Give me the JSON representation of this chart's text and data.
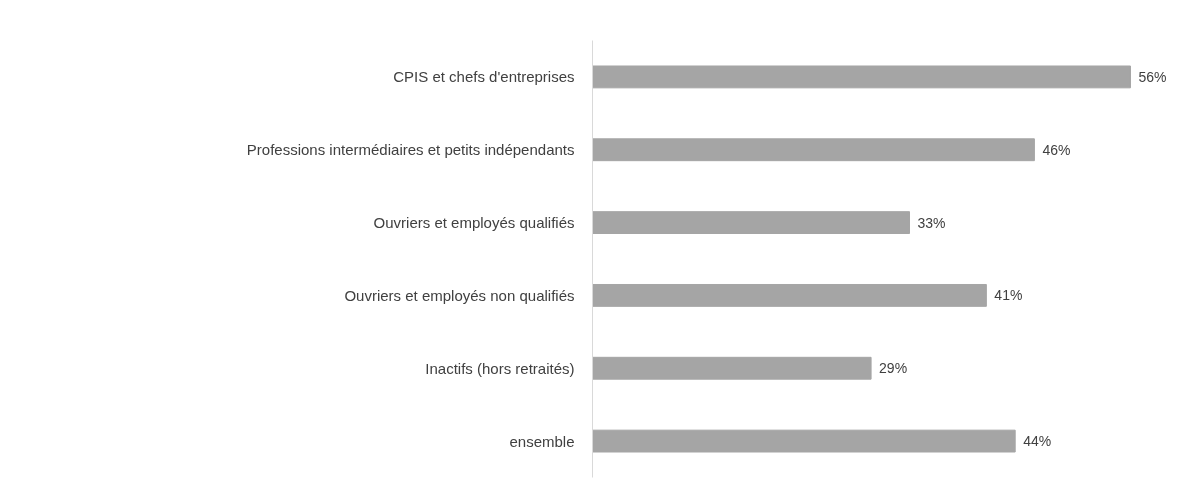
{
  "chart_data": {
    "type": "bar",
    "orientation": "horizontal",
    "categories": [
      "CPIS et chefs d'entreprises",
      "Professions intermédiaires et petits indépendants",
      "Ouvriers et employés qualifiés",
      "Ouvriers et employés non qualifiés",
      "Inactifs (hors retraités)",
      "ensemble"
    ],
    "values": [
      56,
      46,
      33,
      41,
      29,
      44
    ],
    "value_labels": [
      "56%",
      "46%",
      "33%",
      "41%",
      "29%",
      "44%"
    ],
    "color": "#a5a5a5"
  }
}
